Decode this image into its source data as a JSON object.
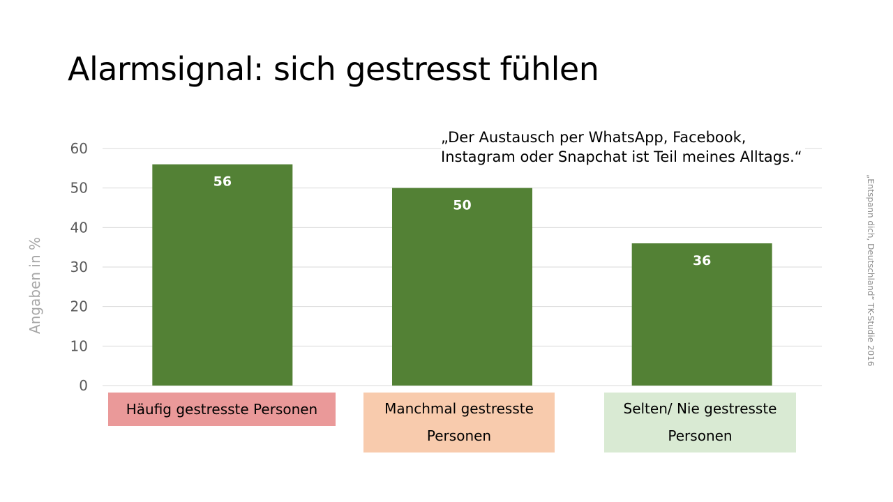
{
  "title": "Alarmsignal: sich gestresst fühlen",
  "quote_lines": [
    "„Der Austausch per WhatsApp, Facebook,",
    "Instagram oder Snapchat ist Teil meines Alltags.“"
  ],
  "source": "„Entspann dich, Deutschland“ TK-Studie 2016",
  "chart_data": {
    "type": "bar",
    "categories": [
      "Häufig gestresste Personen",
      "Manchmal gestresste Personen",
      "Selten/ Nie gestresste Personen"
    ],
    "values": [
      56,
      50,
      36
    ],
    "ylabel": "Angaben in %",
    "ylim": [
      0,
      60
    ],
    "yticks": [
      0,
      10,
      20,
      30,
      40,
      50,
      60
    ],
    "grid": true,
    "bar_color": "#538135",
    "category_label_colors": [
      "#ea9999",
      "#f8cbad",
      "#d9ead3"
    ]
  }
}
